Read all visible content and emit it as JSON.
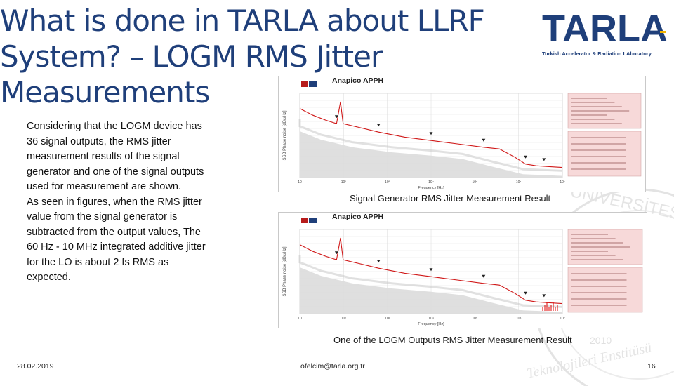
{
  "slide": {
    "title_lines": [
      "What is done in TARLA about LLRF",
      "System? – LOGM RMS Jitter",
      "Measurements"
    ],
    "body": "Considering that the LOGM device has 36 signal outputs, the RMS jitter measurement results of the signal generator and one of the signal outputs used for measurement are shown.\n As seen in figures, when the RMS jitter value from the signal generator is subtracted from the output values, The 60 Hz - 10 MHz integrated additive jitter for the LO is about 2 fs RMS as expected.",
    "date": "28.02.2019",
    "email": "ofelcim@tarla.org.tr",
    "page_number": "16"
  },
  "logo": {
    "word": "TARLA",
    "subtitle": "Turkish Accelerator & Radiation LAboratory",
    "colors": {
      "navy": "#1f3f7a",
      "gold": "#f2b400"
    }
  },
  "plots": [
    {
      "header_title": "Anapico APPH",
      "caption": "Signal Generator RMS Jitter Measurement Result",
      "x_ticks": [
        "10",
        "10²",
        "10³",
        "10⁴",
        "10⁵",
        "10⁶",
        "10⁷"
      ],
      "xlabel": "Frequency [Hz]",
      "ylabel": "SSB Phase noise [dBc/Hz]"
    },
    {
      "header_title": "Anapico APPH",
      "caption": "One of the LOGM Outputs RMS Jitter Measurement Result",
      "x_ticks": [
        "10",
        "10²",
        "10³",
        "10⁴",
        "10⁵",
        "10⁶",
        "10⁷"
      ],
      "xlabel": "Frequency [Hz]",
      "ylabel": "SSB Phase noise [dBc/Hz]"
    }
  ],
  "watermark": {
    "lines": [
      "UNIVERSITESI",
      "Teknolojileri Enstitüsü",
      "2010"
    ]
  },
  "colors": {
    "title": "#1f3f7a",
    "trace": "#d01818",
    "legend_bg": "#f7d9d9"
  }
}
